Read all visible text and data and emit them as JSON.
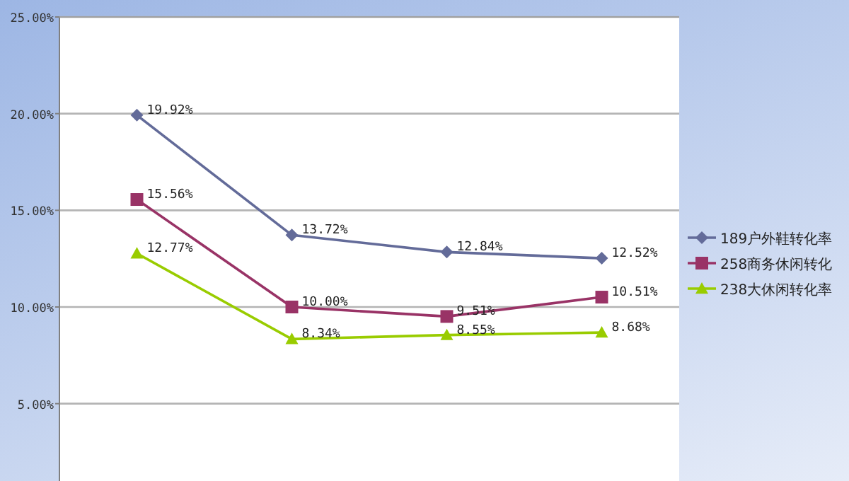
{
  "chart_data": {
    "type": "line",
    "categories": [
      null,
      null,
      null,
      null
    ],
    "series": [
      {
        "name": "189户外鞋转化率",
        "color": "#636b99",
        "marker": "diamond",
        "values": [
          19.92,
          13.72,
          12.84,
          12.52
        ],
        "value_labels": [
          "19.92%",
          "13.72%",
          "12.84%",
          "12.52%"
        ]
      },
      {
        "name": "258商务休闲转化",
        "color": "#993366",
        "marker": "square",
        "values": [
          15.56,
          10.0,
          9.51,
          10.51
        ],
        "value_labels": [
          "15.56%",
          "10.00%",
          "9.51%",
          "10.51%"
        ]
      },
      {
        "name": "238大休闲转化率",
        "color": "#99cc00",
        "marker": "triangle",
        "values": [
          12.77,
          8.34,
          8.55,
          8.68
        ],
        "value_labels": [
          "12.77%",
          "8.34%",
          "8.55%",
          "8.68%"
        ]
      }
    ],
    "ylim": [
      1,
      25
    ],
    "yticks": [
      {
        "value": 5,
        "label": "5.00%"
      },
      {
        "value": 10,
        "label": "10.00%"
      },
      {
        "value": 15,
        "label": "15.00%"
      },
      {
        "value": 20,
        "label": "20.00%"
      },
      {
        "value": 25,
        "label": "25.00%"
      }
    ],
    "grid": "y",
    "legend": "right"
  }
}
